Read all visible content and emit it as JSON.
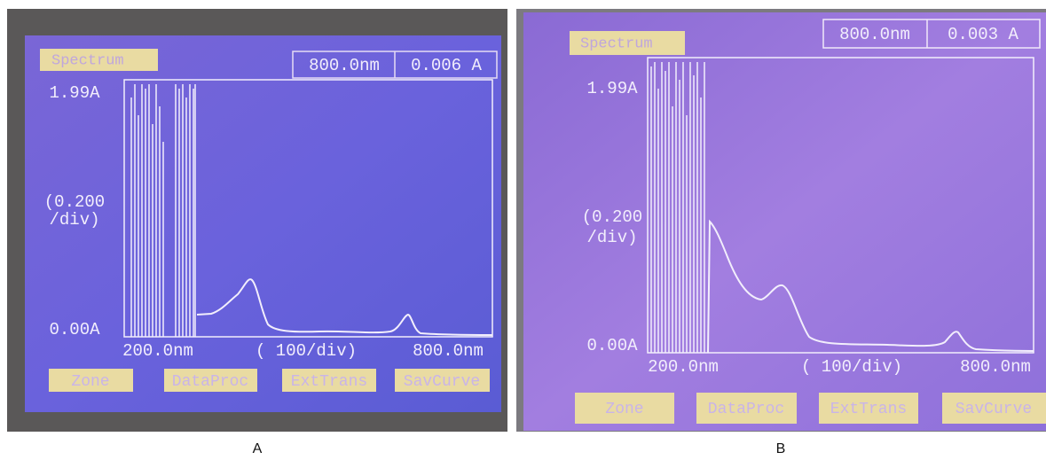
{
  "panels": [
    {
      "caption": "A",
      "header": "Spectrum",
      "wavelength": "800.0nm",
      "absorbance": "0.006 A",
      "y_max": "1.99A",
      "y_scale": [
        "(0.200",
        "/div)"
      ],
      "y_min": "0.00A",
      "x_min": "200.0nm",
      "x_scale": "( 100/div)",
      "x_max": "800.0nm",
      "buttons": [
        "Zone",
        "DataProc",
        "ExtTrans",
        "SavCurve"
      ]
    },
    {
      "caption": "B",
      "header": "Spectrum",
      "wavelength": "800.0nm",
      "absorbance": "0.003 A",
      "y_max": "1.99A",
      "y_scale": [
        "(0.200",
        "/div)"
      ],
      "y_min": "0.00A",
      "x_min": "200.0nm",
      "x_scale": "( 100/div)",
      "x_max": "800.0nm",
      "buttons": [
        "Zone",
        "DataProc",
        "ExtTrans",
        "SavCurve"
      ]
    }
  ]
}
